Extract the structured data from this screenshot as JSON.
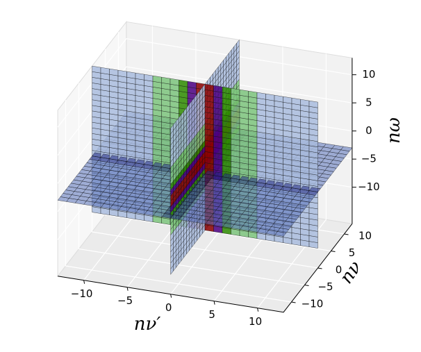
{
  "chart_data": {
    "type": "surface3d",
    "xlabel": "nν′",
    "ylabel": "nν",
    "zlabel": "nω",
    "xlim": [
      -13,
      13
    ],
    "ylim": [
      -13,
      13
    ],
    "zlim": [
      -16.5,
      13
    ],
    "xticks": [
      {
        "value": -10,
        "label": "−10"
      },
      {
        "value": -5,
        "label": "−5"
      },
      0,
      5,
      10
    ],
    "yticks": [
      {
        "value": -10,
        "label": "−10"
      },
      {
        "value": -5,
        "label": "−5"
      },
      0,
      5,
      10
    ],
    "zticks": [
      {
        "value": -10,
        "label": "−10"
      },
      {
        "value": -5,
        "label": "−5"
      },
      0,
      5,
      10
    ],
    "grid": true
  }
}
